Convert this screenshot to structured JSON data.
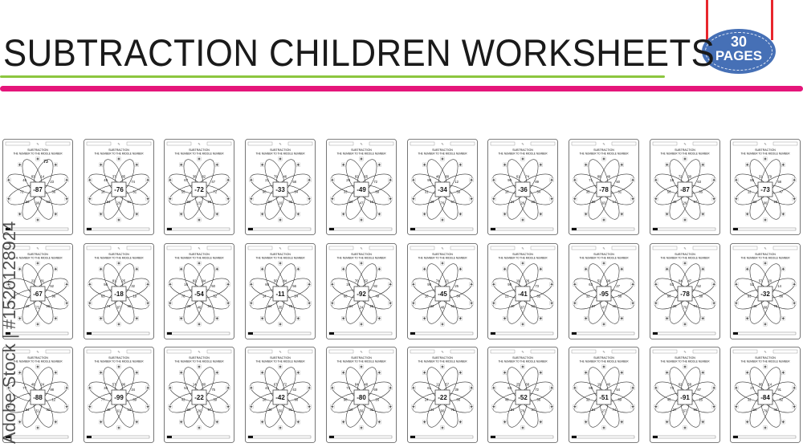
{
  "title": "SUBTRACTION CHILDREN WORKSHEETS",
  "badge": {
    "count": "30",
    "label": "PAGES",
    "color": "#4670b6"
  },
  "colors": {
    "green_line": "#8cc63f",
    "pink_line": "#e5157a",
    "string": "#e8262d"
  },
  "watermark": "Adobe Stock | #1520128924",
  "worksheet_template": {
    "title": "SUBTRACTION",
    "subtitle": "THE NUMBER TO THE MIDDLE NUMBER",
    "icons": [
      "star-icon",
      "pencil-icon"
    ]
  },
  "worksheets": [
    {
      "center": "-87",
      "petals": [
        "83",
        "14",
        "23",
        "36",
        "63",
        "99",
        "56",
        "72",
        "46"
      ],
      "extra": "73"
    },
    {
      "center": "-76",
      "petals": [
        "37",
        "85",
        "74",
        "51",
        "61",
        "29",
        "94",
        "16",
        "49"
      ]
    },
    {
      "center": "-72",
      "petals": [
        "38",
        "82",
        "47",
        "72",
        "29",
        "15",
        "92",
        "55",
        "67"
      ]
    },
    {
      "center": "-33",
      "petals": [
        "79",
        "46",
        "58",
        "64",
        "32",
        "10",
        "87",
        "90",
        "21"
      ]
    },
    {
      "center": "-49",
      "petals": [
        "82",
        "65",
        "72",
        "89",
        "10",
        "47",
        "56",
        "33",
        "29"
      ]
    },
    {
      "center": "-34",
      "petals": [
        "46",
        "80",
        "12",
        "59",
        "67",
        "76",
        "29",
        "31",
        "98"
      ]
    },
    {
      "center": "-36",
      "petals": [
        "61",
        "74",
        "89",
        "54",
        "29",
        "26",
        "31",
        "10",
        "90"
      ]
    },
    {
      "center": "-78",
      "petals": [
        "88",
        "49",
        "50",
        "31",
        "14",
        "63",
        "98",
        "35",
        "71"
      ]
    },
    {
      "center": "-87",
      "petals": [
        "72",
        "30",
        "63",
        "85",
        "97",
        "29",
        "45",
        "56",
        "19"
      ]
    },
    {
      "center": "-73",
      "petals": [
        "31",
        "79",
        "58",
        "47",
        "29",
        "90",
        "62",
        "12",
        "85"
      ]
    },
    {
      "center": "-67",
      "petals": [
        "22",
        "81",
        "52",
        "96",
        "28",
        "72",
        "18",
        null,
        null
      ]
    },
    {
      "center": "-18",
      "petals": [
        "81",
        "25",
        "32",
        "19",
        "40",
        "87",
        "74",
        "63",
        "56"
      ]
    },
    {
      "center": "-54",
      "petals": [
        "82",
        "94",
        "50",
        "62",
        "34",
        "46",
        "29",
        "78",
        "16"
      ]
    },
    {
      "center": "-11",
      "petals": [
        "50",
        "84",
        "56",
        "24",
        "79",
        "35",
        "64",
        "14",
        "60"
      ]
    },
    {
      "center": "-92",
      "petals": [
        "70",
        "52",
        "82",
        "49",
        "25",
        "24",
        "61",
        "68",
        "19"
      ]
    },
    {
      "center": "-45",
      "petals": [
        "74",
        "21",
        "25",
        "84",
        "52",
        "48",
        "62",
        "10",
        "98"
      ]
    },
    {
      "center": "-41",
      "petals": [
        "19",
        "26",
        "73",
        "85",
        "52",
        "67",
        "40",
        "21",
        "98"
      ]
    },
    {
      "center": "-95",
      "petals": [
        "52",
        "98",
        "27",
        "38",
        "40",
        "47",
        "87",
        "32",
        "63"
      ]
    },
    {
      "center": "-78",
      "petals": [
        "84",
        "47",
        "52",
        "38",
        "74",
        "70",
        "28",
        "96",
        "63"
      ]
    },
    {
      "center": "-32",
      "petals": [
        "57",
        "20",
        "14",
        "86",
        "79",
        "68",
        "48",
        "93",
        "52"
      ]
    },
    {
      "center": "-88",
      "petals": [
        "46",
        "24",
        "98",
        "12",
        "32",
        "51",
        "84",
        null,
        "77"
      ]
    },
    {
      "center": "-99",
      "petals": [
        "57",
        "96",
        "34",
        "89",
        "12",
        "61",
        "48",
        "77",
        "35"
      ]
    },
    {
      "center": "-22",
      "petals": [
        "14",
        "80",
        "75",
        "39",
        "97",
        "26",
        "68",
        "42",
        "53"
      ]
    },
    {
      "center": "-42",
      "petals": [
        "67",
        "72",
        "43",
        "98",
        "81",
        "50",
        "36",
        "28",
        "43"
      ]
    },
    {
      "center": "-80",
      "petals": [
        "84",
        "48",
        "69",
        "26",
        "32",
        "56",
        "10",
        "98",
        "73"
      ]
    },
    {
      "center": "-22",
      "petals": [
        "11",
        "57",
        "39",
        "86",
        "75",
        "90",
        "41",
        "24",
        "61"
      ]
    },
    {
      "center": "-52",
      "petals": [
        "25",
        "68",
        "72",
        "56",
        "37",
        "78",
        "81",
        "49",
        "83"
      ]
    },
    {
      "center": "-51",
      "petals": [
        "19",
        "40",
        "54",
        "89",
        "74",
        "27",
        "61",
        "32",
        "98"
      ]
    },
    {
      "center": "-91",
      "petals": [
        "62",
        "58",
        "87",
        "25",
        "90",
        "57",
        "37",
        "45",
        "73"
      ]
    },
    {
      "center": "-84",
      "petals": [
        "86",
        "14",
        "91",
        "62",
        "40",
        "79",
        "56",
        "32",
        "27"
      ]
    }
  ]
}
